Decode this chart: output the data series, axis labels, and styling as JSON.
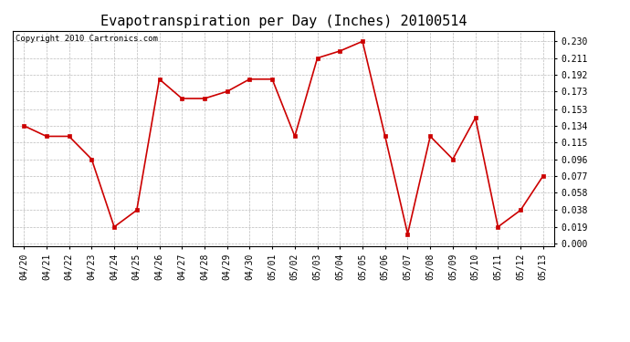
{
  "title": "Evapotranspiration per Day (Inches) 20100514",
  "copyright": "Copyright 2010 Cartronics.com",
  "x_labels": [
    "04/20",
    "04/21",
    "04/22",
    "04/23",
    "04/24",
    "04/25",
    "04/26",
    "04/27",
    "04/28",
    "04/29",
    "04/30",
    "05/01",
    "05/02",
    "05/03",
    "05/04",
    "05/05",
    "05/06",
    "05/07",
    "05/08",
    "05/09",
    "05/10",
    "05/11",
    "05/12",
    "05/13"
  ],
  "y_values": [
    0.134,
    0.122,
    0.122,
    0.096,
    0.019,
    0.038,
    0.187,
    0.165,
    0.165,
    0.173,
    0.187,
    0.187,
    0.122,
    0.211,
    0.219,
    0.23,
    0.122,
    0.011,
    0.122,
    0.096,
    0.143,
    0.019,
    0.038,
    0.077
  ],
  "line_color": "#cc0000",
  "marker": "s",
  "marker_size": 3,
  "y_ticks": [
    0.0,
    0.019,
    0.038,
    0.058,
    0.077,
    0.096,
    0.115,
    0.134,
    0.153,
    0.173,
    0.192,
    0.211,
    0.23
  ],
  "ylim": [
    -0.003,
    0.242
  ],
  "background_color": "#ffffff",
  "plot_bg_color": "#ffffff",
  "grid_color": "#bbbbbb",
  "title_fontsize": 11,
  "tick_fontsize": 7,
  "copyright_fontsize": 6.5
}
